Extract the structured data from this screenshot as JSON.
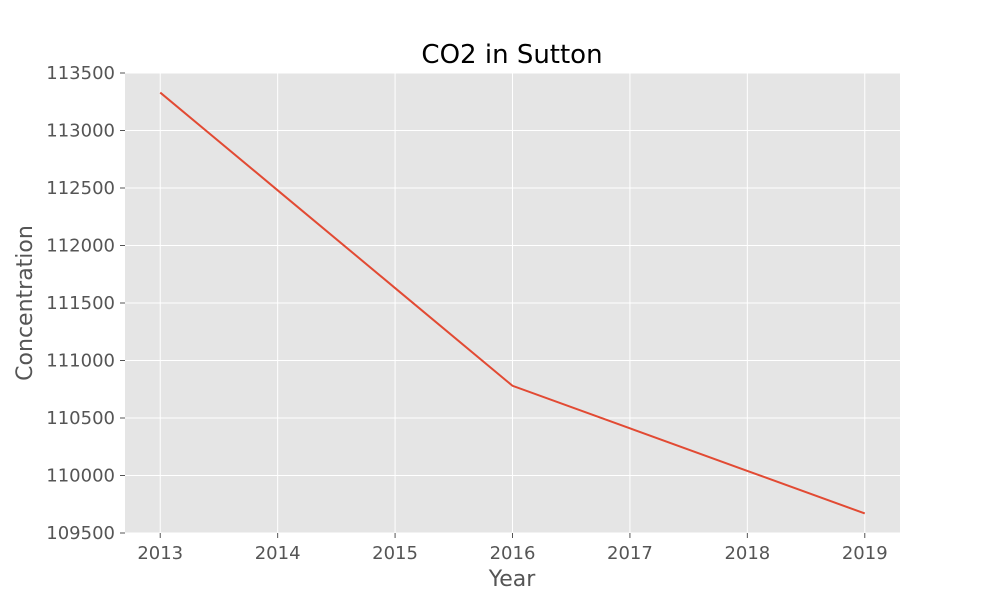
{
  "chart_data": {
    "type": "line",
    "title": "CO2 in Sutton",
    "xlabel": "Year",
    "ylabel": "Concentration",
    "x": [
      2013,
      2014,
      2015,
      2016,
      2017,
      2018,
      2019
    ],
    "series": [
      {
        "values": [
          113330,
          112480,
          111630,
          110780,
          110410,
          110040,
          109670
        ],
        "color": "#E24A33"
      }
    ],
    "xticks": [
      "2013",
      "2014",
      "2015",
      "2016",
      "2017",
      "2018",
      "2019"
    ],
    "yticks": [
      "109500",
      "110000",
      "110500",
      "111000",
      "111500",
      "112000",
      "112500",
      "113000",
      "113500"
    ],
    "ylim": [
      109500,
      113500
    ],
    "xlim": [
      2012.7,
      2019.3
    ],
    "grid": true,
    "background": "#E5E5E5",
    "grid_color": "#FFFFFF"
  }
}
